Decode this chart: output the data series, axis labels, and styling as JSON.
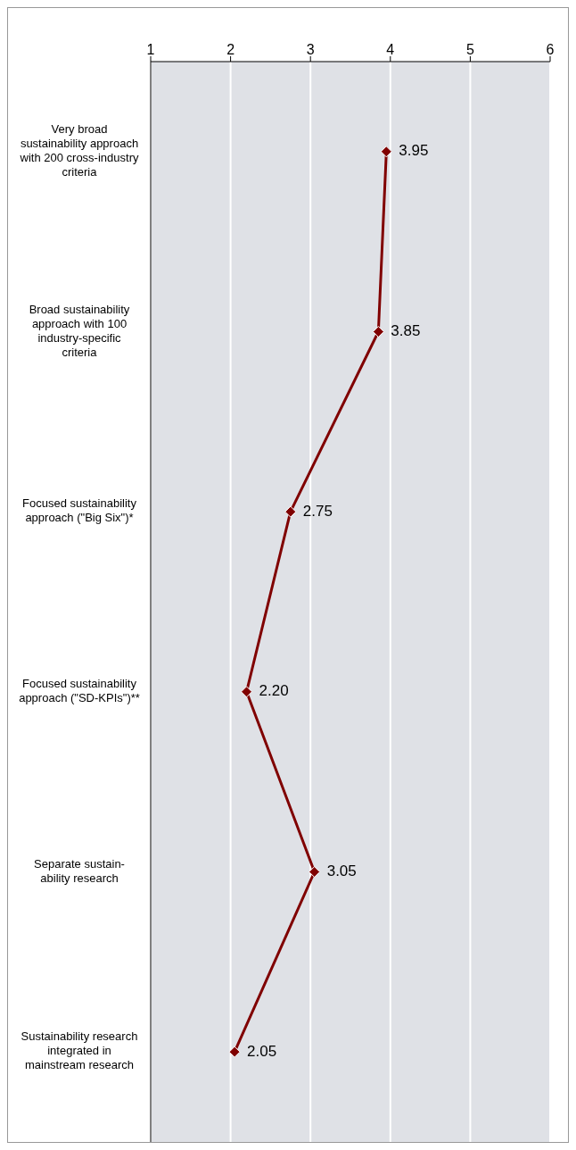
{
  "chart_data": {
    "type": "line",
    "orientation": "horizontal",
    "categories": [
      "Very broad sustainability approach with 200 cross-industry criteria",
      "Broad sustainability approach with 100 industry-specific criteria",
      "Focused sustainability approach (\"Big Six\")*",
      "Focused sustainability approach (\"SD-KPIs\")**",
      "Separate sustain- ability research",
      "Sustainability research integrated in mainstream research"
    ],
    "series": [
      {
        "color": "#800000",
        "values": [
          3.95,
          3.85,
          2.75,
          2.2,
          3.05,
          2.05
        ],
        "value_labels": [
          "3.95",
          "3.85",
          "2.75",
          "2.20",
          "3.05",
          "2.05"
        ]
      }
    ],
    "xlim": [
      1,
      6
    ],
    "xticks": [
      1,
      2,
      3,
      4,
      5,
      6
    ],
    "grid": "x",
    "marker": "diamond",
    "line_style": "solid",
    "legend": false
  }
}
